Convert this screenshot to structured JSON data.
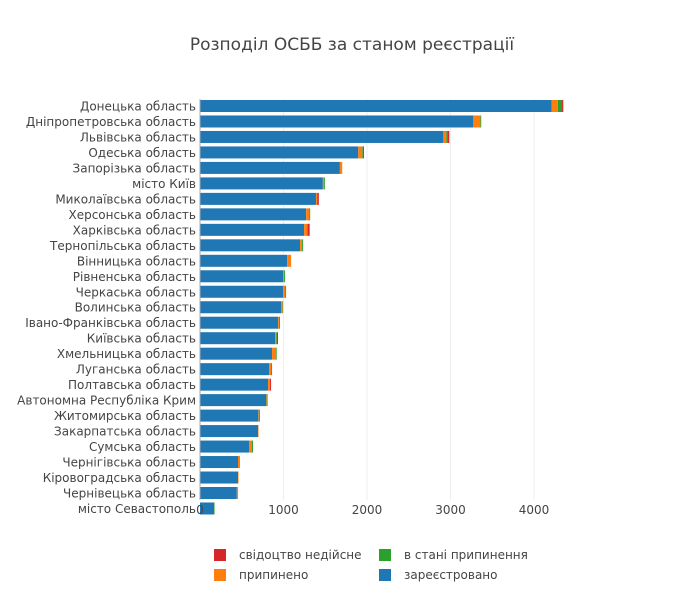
{
  "chart_data": {
    "type": "bar",
    "orientation": "horizontal",
    "stacked": true,
    "title": "Розподіл ОСББ за станом реєстрації",
    "xlabel": "",
    "ylabel": "",
    "xlim": [
      0,
      4550
    ],
    "xticks": [
      0,
      1000,
      2000,
      3000,
      4000
    ],
    "grid": true,
    "legend_position": "bottom",
    "categories": [
      "Донецька область",
      "Дніпропетровська область",
      "Львівська область",
      "Одеська область",
      "Запорізька область",
      "місто Київ",
      "Миколаївська область",
      "Херсонська область",
      "Харківська область",
      "Тернопільська область",
      "Вінницька область",
      "Рівненська область",
      "Черкаська область",
      "Волинська область",
      "Івано-Франківська область",
      "Київська область",
      "Хмельницька область",
      "Луганська область",
      "Полтавська область",
      "Автономна Республіка Крим",
      "Житомирська область",
      "Закарпатська область",
      "Сумська область",
      "Чернігівська область",
      "Кіровоградська область",
      "Чернівецька область",
      "місто Севастополь"
    ],
    "series": [
      {
        "name": "зареєстровано",
        "color": "#1f77b4",
        "values": [
          4210,
          3273,
          2914,
          1895,
          1675,
          1471,
          1391,
          1271,
          1247,
          1199,
          1043,
          995,
          995,
          971,
          935,
          899,
          863,
          827,
          815,
          791,
          699,
          695,
          587,
          455,
          455,
          441,
          168
        ]
      },
      {
        "name": "припинено",
        "color": "#ff7f0e",
        "values": [
          75,
          84,
          36,
          48,
          28,
          12,
          10,
          36,
          36,
          24,
          48,
          12,
          24,
          18,
          10,
          15,
          48,
          24,
          24,
          6,
          6,
          6,
          36,
          24,
          6,
          15,
          0
        ]
      },
      {
        "name": "в стані припинення",
        "color": "#2ca02c",
        "values": [
          50,
          10,
          10,
          8,
          0,
          12,
          12,
          12,
          10,
          12,
          0,
          12,
          12,
          6,
          12,
          8,
          8,
          12,
          0,
          12,
          12,
          0,
          12,
          0,
          0,
          0,
          6
        ]
      },
      {
        "name": "свідоцтво недійсне",
        "color": "#d62728",
        "values": [
          15,
          0,
          25,
          12,
          0,
          0,
          10,
          0,
          20,
          0,
          0,
          0,
          0,
          0,
          0,
          12,
          0,
          0,
          12,
          0,
          0,
          0,
          0,
          0,
          0,
          0,
          0
        ]
      }
    ],
    "legend": [
      {
        "label": "свідоцтво недійсне",
        "color": "#d62728"
      },
      {
        "label": "в стані припинення",
        "color": "#2ca02c"
      },
      {
        "label": "припинено",
        "color": "#ff7f0e"
      },
      {
        "label": "зареєстровано",
        "color": "#1f77b4"
      }
    ]
  }
}
